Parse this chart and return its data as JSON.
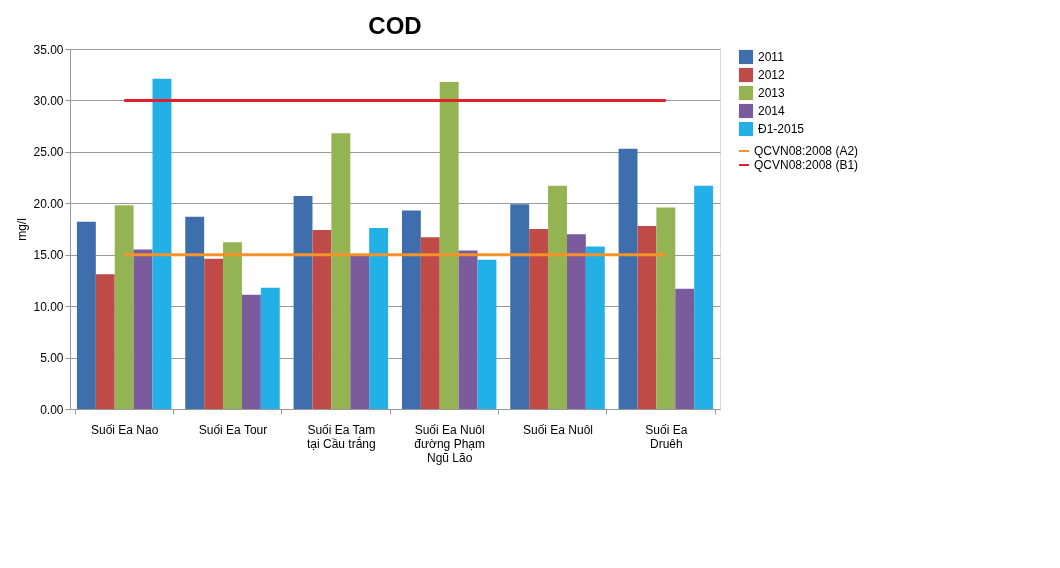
{
  "chart_data": {
    "type": "bar",
    "title": "COD",
    "ylabel": "mg/l",
    "categories": [
      "Suối Ea Nao",
      "Suối Ea Tour",
      "Suối Ea Tam\ntại Cầu trắng",
      "Suối Ea Nuôl\nđường Phạm\nNgũ Lão",
      "Suối Ea Nuôl",
      "Suối Ea\nDruêh"
    ],
    "series": [
      {
        "name": "2011",
        "color": "#3e6eac",
        "values": [
          18.2,
          18.7,
          20.7,
          19.3,
          19.9,
          25.3
        ]
      },
      {
        "name": "2012",
        "color": "#be4b48",
        "values": [
          13.1,
          14.6,
          17.4,
          16.7,
          17.5,
          17.8
        ]
      },
      {
        "name": "2013",
        "color": "#94b454",
        "values": [
          19.8,
          16.2,
          26.8,
          31.8,
          21.7,
          19.6
        ]
      },
      {
        "name": "2014",
        "color": "#7a5b9c",
        "values": [
          15.5,
          11.1,
          14.9,
          15.4,
          17.0,
          11.7
        ]
      },
      {
        "name": "Đ1-2015",
        "color": "#22b0e6",
        "values": [
          32.1,
          11.8,
          17.6,
          14.5,
          15.8,
          21.7
        ]
      },
      {
        "name": "QCVN08:2008 (A2)",
        "type": "line",
        "color": "#f7922a",
        "values": [
          15,
          15,
          15,
          15,
          15,
          15
        ]
      },
      {
        "name": "QCVN08:2008 (B1)",
        "type": "line",
        "color": "#e3202a",
        "values": [
          30,
          30,
          30,
          30,
          30,
          30
        ]
      }
    ],
    "ylim": [
      0,
      35
    ],
    "yticks": [
      {
        "value": 0,
        "label": "0.00"
      },
      {
        "value": 5,
        "label": "5.00"
      },
      {
        "value": 10,
        "label": "10.00"
      },
      {
        "value": 15,
        "label": "15.00"
      },
      {
        "value": 20,
        "label": "20.00"
      },
      {
        "value": 25,
        "label": "25.00"
      },
      {
        "value": 30,
        "label": "30.00"
      },
      {
        "value": 35,
        "label": "35.00"
      }
    ],
    "grid": "y",
    "legend": "right"
  }
}
